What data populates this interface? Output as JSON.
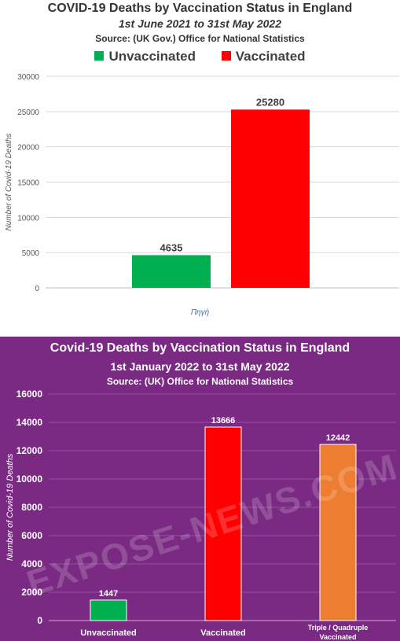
{
  "chart_data": [
    {
      "type": "bar",
      "title": "COVID-19 Deaths by Vaccination Status in England",
      "subtitle": "1st June 2021 to 31st May 2022",
      "source": "Source: (UK Gov.) Office for National Statistics",
      "ylabel": "Number of Covid-19 Deaths",
      "xlabel": "",
      "ylim": [
        0,
        30000
      ],
      "yticks": [
        "0",
        "5000",
        "10000",
        "15000",
        "20000",
        "25000",
        "30000"
      ],
      "legend": [
        "Unvaccinated",
        "Vaccinated"
      ],
      "legend_position": "top-center",
      "grid": true,
      "categories": [
        "Unvaccinated",
        "Vaccinated"
      ],
      "values": [
        4635,
        25280
      ],
      "data_labels": [
        "4635",
        "25280"
      ],
      "colors": [
        "#00b050",
        "#ff0000"
      ]
    },
    {
      "type": "bar",
      "title": "Covid-19 Deaths by Vaccination Status in England",
      "subtitle": "1st January 2022 to 31st May 2022",
      "source": "Source:  (UK) Office for National Statistics",
      "ylabel": "Number of Covid-19 Deaths",
      "xlabel": "",
      "ylim": [
        0,
        16000
      ],
      "yticks": [
        "0",
        "2000",
        "4000",
        "6000",
        "8000",
        "10000",
        "12000",
        "14000",
        "16000"
      ],
      "grid": true,
      "categories": [
        "Unvaccinated",
        "Vaccinated",
        "Triple / Quadruple Vaccinated"
      ],
      "values": [
        1447,
        13666,
        12442
      ],
      "data_labels": [
        "1447",
        "13666",
        "12442"
      ],
      "colors": [
        "#00b050",
        "#ff0000",
        "#ed7d31"
      ]
    }
  ],
  "source_link": "Πηγή",
  "watermark": "EXPOSE-NEWS.COM",
  "colors": {
    "background_bottom": "#7a2a82"
  }
}
